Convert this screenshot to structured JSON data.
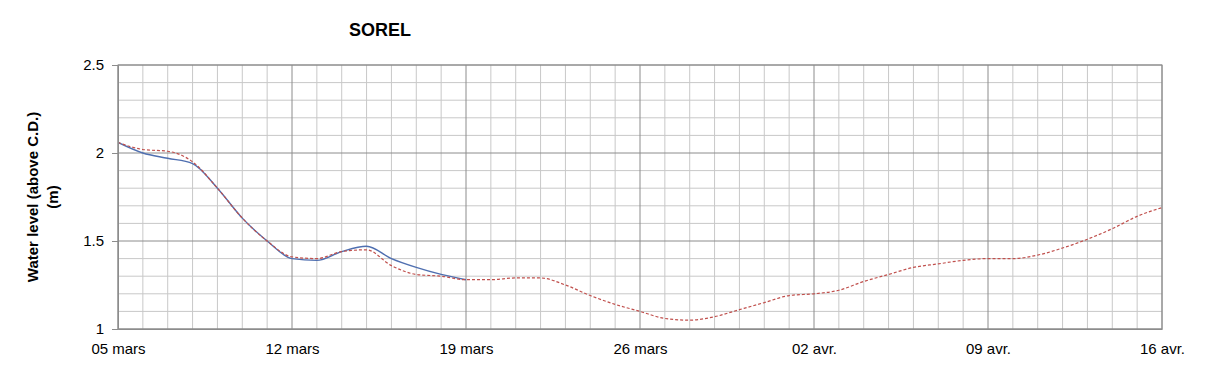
{
  "chart_data": {
    "type": "line",
    "title": "SOREL",
    "ylabel": [
      "Water level (above C.D.)",
      "(m)"
    ],
    "x": [
      0,
      1,
      2,
      3,
      4,
      5,
      6,
      7,
      8,
      9,
      10,
      11,
      12,
      13,
      14,
      15,
      16,
      17,
      18,
      19,
      20,
      21,
      22,
      23,
      24,
      25,
      26,
      27,
      28,
      29,
      30,
      31,
      32,
      33,
      34,
      35,
      36,
      37,
      38,
      39,
      40,
      41,
      42
    ],
    "xlim": [
      0,
      42
    ],
    "xticks": [
      {
        "value": 0,
        "label": "05 mars"
      },
      {
        "value": 7,
        "label": "12 mars"
      },
      {
        "value": 14,
        "label": "19 mars"
      },
      {
        "value": 21,
        "label": "26 mars"
      },
      {
        "value": 28,
        "label": "02 avr."
      },
      {
        "value": 35,
        "label": "09 avr."
      },
      {
        "value": 42,
        "label": "16 avr."
      }
    ],
    "ylim": [
      1,
      2.5
    ],
    "yticks": [
      1,
      1.5,
      2,
      2.5
    ],
    "grid": true,
    "series": [
      {
        "color": "#4f6fb0",
        "line_style": "solid",
        "values": [
          2.06,
          2.0,
          1.97,
          1.94,
          1.8,
          1.63,
          1.5,
          1.4,
          1.39,
          1.44,
          1.47,
          1.4,
          1.35,
          1.31,
          1.28,
          null,
          null,
          null,
          null,
          null,
          null,
          null,
          null,
          null,
          null,
          null,
          null,
          null,
          null,
          null,
          null,
          null,
          null,
          null,
          null,
          null,
          null,
          null,
          null,
          null,
          null,
          null,
          null
        ]
      },
      {
        "color": "#c0504d",
        "line_style": "dashed",
        "values": [
          2.06,
          2.02,
          2.01,
          1.95,
          1.8,
          1.63,
          1.5,
          1.41,
          1.4,
          1.44,
          1.45,
          1.36,
          1.31,
          1.3,
          1.28,
          1.28,
          1.29,
          1.29,
          1.25,
          1.19,
          1.14,
          1.1,
          1.06,
          1.05,
          1.07,
          1.11,
          1.15,
          1.19,
          1.2,
          1.22,
          1.27,
          1.31,
          1.35,
          1.37,
          1.39,
          1.4,
          1.4,
          1.42,
          1.46,
          1.51,
          1.57,
          1.64,
          1.69
        ]
      }
    ]
  }
}
